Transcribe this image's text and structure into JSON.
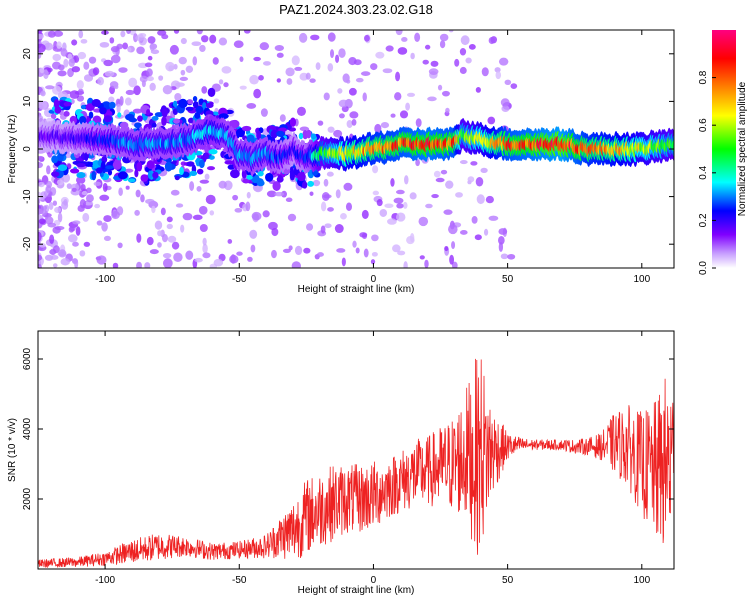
{
  "title": "PAZ1.2024.303.23.02.G18",
  "chart_data": [
    {
      "type": "heatmap",
      "title": "PAZ1.2024.303.23.02.G18",
      "xlabel": "Height of straight line (km)",
      "ylabel": "Frequency (Hz)",
      "xlim": [
        -125,
        112
      ],
      "ylim": [
        -25,
        25
      ],
      "xticks": [
        -100,
        -50,
        0,
        50,
        100
      ],
      "yticks": [
        -20,
        -10,
        0,
        10,
        20
      ],
      "colorbar": {
        "label": "Normalized spectral amplitude",
        "range": [
          0,
          1
        ],
        "ticks": [
          "0.0",
          "0.2",
          "0.4",
          "0.6",
          "0.8"
        ],
        "colors": [
          "#ffffff",
          "#8000ff",
          "#0000ff",
          "#00ffff",
          "#00ff00",
          "#ffff00",
          "#ff8000",
          "#ff0000",
          "#ff0080"
        ]
      },
      "description_ridge": {
        "x": [
          -125,
          -110,
          -100,
          -90,
          -80,
          -70,
          -60,
          -55,
          -50,
          -45,
          -40,
          -35,
          -30,
          -25,
          -20,
          -10,
          0,
          10,
          20,
          30,
          33,
          40,
          50,
          60,
          70,
          80,
          90,
          100,
          112
        ],
        "center_freq": [
          3,
          2,
          2,
          1,
          1,
          2,
          4,
          3,
          -1,
          -2,
          -1,
          -2,
          0,
          -2,
          -1,
          -1,
          0,
          1,
          1,
          1,
          3,
          2,
          1,
          1,
          1,
          0,
          0,
          0,
          1
        ],
        "amplitude": [
          0.15,
          0.2,
          0.25,
          0.3,
          0.3,
          0.3,
          0.35,
          0.3,
          0.3,
          0.3,
          0.3,
          0.25,
          0.2,
          0.25,
          0.45,
          0.65,
          0.75,
          0.8,
          0.85,
          0.8,
          0.5,
          0.6,
          0.8,
          0.85,
          0.9,
          0.75,
          0.7,
          0.6,
          0.5
        ]
      }
    },
    {
      "type": "line",
      "xlabel": "Height of straight line (km)",
      "ylabel": "SNR (10 * v/v)",
      "xlim": [
        -125,
        112
      ],
      "ylim": [
        0,
        6800
      ],
      "xticks": [
        -100,
        -50,
        0,
        50,
        100
      ],
      "yticks": [
        2000,
        4000,
        6000
      ],
      "color": "#ee2222",
      "envelope": {
        "x": [
          -125,
          -110,
          -100,
          -90,
          -80,
          -70,
          -60,
          -50,
          -40,
          -35,
          -30,
          -25,
          -20,
          -15,
          -10,
          -5,
          0,
          5,
          10,
          15,
          20,
          25,
          30,
          35,
          38,
          40,
          42,
          45,
          50,
          55,
          60,
          65,
          70,
          75,
          80,
          85,
          90,
          95,
          100,
          105,
          110,
          112
        ],
        "mean": [
          150,
          200,
          300,
          500,
          650,
          650,
          500,
          550,
          650,
          900,
          1100,
          1500,
          1700,
          1900,
          2000,
          2000,
          2100,
          2300,
          2500,
          2700,
          2800,
          2900,
          3000,
          3300,
          3200,
          3400,
          3300,
          3400,
          3500,
          3550,
          3550,
          3550,
          3550,
          3500,
          3500,
          3500,
          3600,
          3500,
          3000,
          2800,
          3000,
          3200
        ],
        "amp": [
          120,
          150,
          200,
          350,
          400,
          300,
          250,
          250,
          350,
          600,
          900,
          1100,
          1100,
          1100,
          1000,
          1000,
          1000,
          900,
          900,
          1000,
          1000,
          1200,
          1400,
          2000,
          2800,
          3000,
          2000,
          1200,
          400,
          200,
          150,
          150,
          150,
          200,
          250,
          400,
          900,
          1200,
          1500,
          2000,
          2800,
          2000
        ]
      }
    }
  ]
}
